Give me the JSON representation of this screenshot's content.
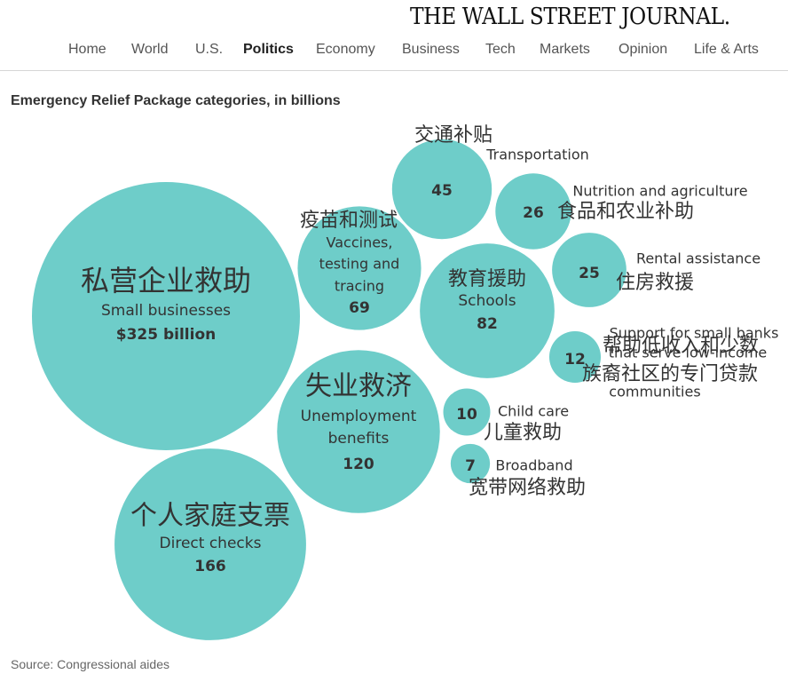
{
  "masthead": {
    "logo": "THE WALL STREET JOURNAL.",
    "nav": [
      "Home",
      "World",
      "U.S.",
      "Politics",
      "Economy",
      "Business",
      "Tech",
      "Markets",
      "Opinion",
      "Life & Arts"
    ],
    "active_nav": "Politics"
  },
  "source": "Source: Congressional aides",
  "colors": {
    "bubble": "#6ecdc9",
    "text": "#333333"
  },
  "chart_data": {
    "type": "bubble",
    "title": "Emergency Relief Package categories, in billions",
    "units": "billions",
    "items": [
      {
        "zh": "私营企业救助",
        "en": "Small businesses",
        "value": 325,
        "value_label": "$325 billion"
      },
      {
        "zh": "个人家庭支票",
        "en": "Direct checks",
        "value": 166,
        "value_label": "166"
      },
      {
        "zh": "失业救济",
        "en": "Unemployment benefits",
        "value": 120,
        "value_label": "120"
      },
      {
        "zh": "教育援助",
        "en": "Schools",
        "value": 82,
        "value_label": "82"
      },
      {
        "zh": "疫苗和测试",
        "en": "Vaccines, testing and tracing",
        "value": 69,
        "value_label": "69"
      },
      {
        "zh": "交通补贴",
        "en": "Transportation",
        "value": 45,
        "value_label": "45"
      },
      {
        "zh": "食品和农业补助",
        "en": "Nutrition and agriculture",
        "value": 26,
        "value_label": "26"
      },
      {
        "zh": "住房救援",
        "en": "Rental assistance",
        "value": 25,
        "value_label": "25"
      },
      {
        "zh": "帮助低收入和少数族裔社区的专门贷款",
        "en": "Support for small banks that serve low-income communities",
        "value": 12,
        "value_label": "12"
      },
      {
        "zh": "儿童救助",
        "en": "Child care",
        "value": 10,
        "value_label": "10"
      },
      {
        "zh": "宽带网络救助",
        "en": "Broadband",
        "value": 7,
        "value_label": "7"
      }
    ]
  }
}
